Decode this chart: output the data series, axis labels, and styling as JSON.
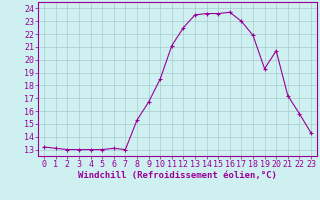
{
  "x": [
    0,
    1,
    2,
    3,
    4,
    5,
    6,
    7,
    8,
    9,
    10,
    11,
    12,
    13,
    14,
    15,
    16,
    17,
    18,
    19,
    20,
    21,
    22,
    23
  ],
  "y": [
    13.2,
    13.1,
    13.0,
    13.0,
    13.0,
    13.0,
    13.1,
    13.0,
    15.3,
    16.7,
    18.5,
    21.1,
    22.5,
    23.5,
    23.6,
    23.6,
    23.7,
    23.0,
    21.9,
    19.3,
    20.7,
    17.2,
    15.8,
    14.3
  ],
  "line_color": "#990099",
  "marker": "+",
  "marker_size": 3.5,
  "xlabel": "Windchill (Refroidissement éolien,°C)",
  "xlim": [
    -0.5,
    23.5
  ],
  "ylim": [
    12.5,
    24.5
  ],
  "yticks": [
    13,
    14,
    15,
    16,
    17,
    18,
    19,
    20,
    21,
    22,
    23,
    24
  ],
  "xticks": [
    0,
    1,
    2,
    3,
    4,
    5,
    6,
    7,
    8,
    9,
    10,
    11,
    12,
    13,
    14,
    15,
    16,
    17,
    18,
    19,
    20,
    21,
    22,
    23
  ],
  "bg_color": "#cff0f0",
  "grid_color": "#aacccc",
  "border_color": "#990099",
  "tick_color": "#990099",
  "label_color": "#990099",
  "xlabel_fontsize": 6.5,
  "tick_fontsize": 6,
  "linewidth": 0.8,
  "marker_linewidth": 0.8
}
